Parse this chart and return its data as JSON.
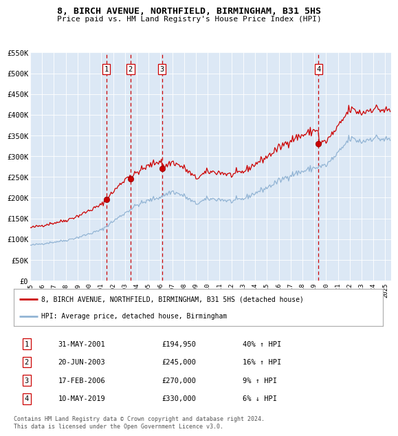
{
  "title": "8, BIRCH AVENUE, NORTHFIELD, BIRMINGHAM, B31 5HS",
  "subtitle": "Price paid vs. HM Land Registry's House Price Index (HPI)",
  "footer": "Contains HM Land Registry data © Crown copyright and database right 2024.\nThis data is licensed under the Open Government Licence v3.0.",
  "legend_line1": "8, BIRCH AVENUE, NORTHFIELD, BIRMINGHAM, B31 5HS (detached house)",
  "legend_line2": "HPI: Average price, detached house, Birmingham",
  "transactions": [
    {
      "num": 1,
      "date": "31-MAY-2001",
      "price": "£194,950",
      "change": "40% ↑ HPI",
      "year": 2001.42,
      "price_val": 194950
    },
    {
      "num": 2,
      "date": "20-JUN-2003",
      "price": "£245,000",
      "change": "16% ↑ HPI",
      "year": 2003.47,
      "price_val": 245000
    },
    {
      "num": 3,
      "date": "17-FEB-2006",
      "price": "£270,000",
      "change": "9% ↑ HPI",
      "year": 2006.13,
      "price_val": 270000
    },
    {
      "num": 4,
      "date": "10-MAY-2019",
      "price": "£330,000",
      "change": "6% ↓ HPI",
      "year": 2019.36,
      "price_val": 330000
    }
  ],
  "hpi_color": "#92b4d4",
  "price_color": "#cc0000",
  "dashed_color": "#cc0000",
  "background_plot": "#dce8f5",
  "ylim": [
    0,
    550000
  ],
  "xlim_start": 1995.0,
  "xlim_end": 2025.5,
  "yticks": [
    0,
    50000,
    100000,
    150000,
    200000,
    250000,
    300000,
    350000,
    400000,
    450000,
    500000,
    550000
  ],
  "ytick_labels": [
    "£0",
    "£50K",
    "£100K",
    "£150K",
    "£200K",
    "£250K",
    "£300K",
    "£350K",
    "£400K",
    "£450K",
    "£500K",
    "£550K"
  ]
}
